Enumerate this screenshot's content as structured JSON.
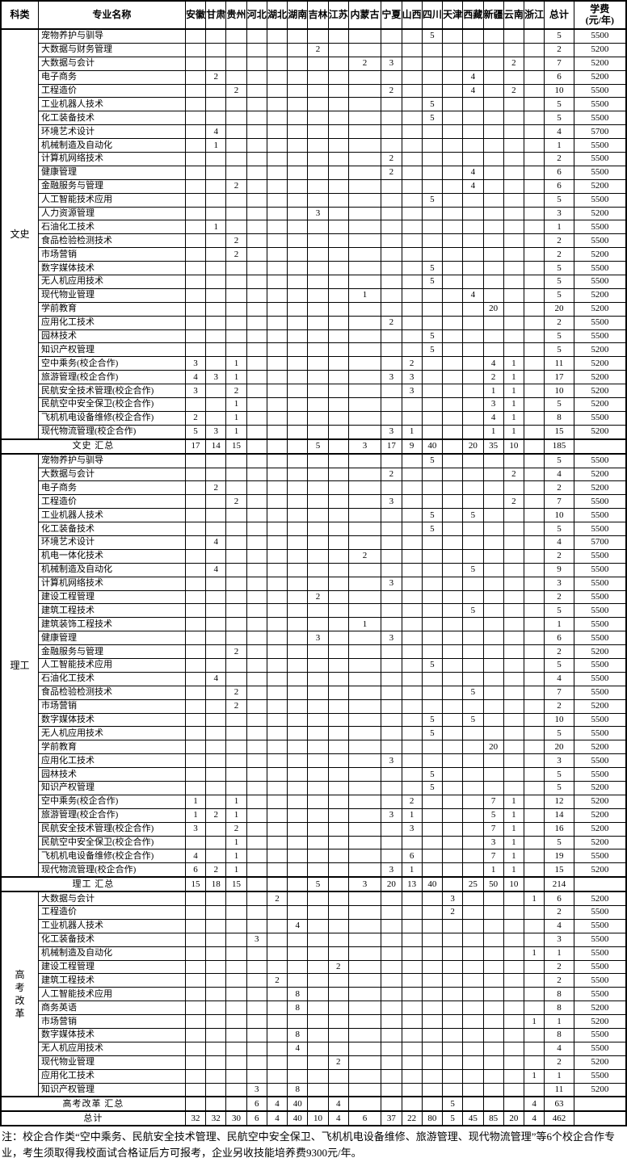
{
  "table": {
    "headers": {
      "category": "科类",
      "major": "专业名称",
      "total": "总计",
      "fee": "学费\n(元/年)"
    },
    "provinces": [
      "安徽",
      "甘肃",
      "贵州",
      "河北",
      "湖北",
      "湖南",
      "吉林",
      "江苏",
      "内蒙古",
      "宁夏",
      "山西",
      "四川",
      "天津",
      "西藏",
      "新疆",
      "云南",
      "浙江"
    ],
    "sections": [
      {
        "label": "文史",
        "rows": [
          {
            "major": "宠物养护与驯导",
            "values": {
              "四川": 5
            },
            "total": 5,
            "fee": "5500"
          },
          {
            "major": "大数据与财务管理",
            "values": {
              "吉林": 2
            },
            "total": 2,
            "fee": "5200"
          },
          {
            "major": "大数据与会计",
            "values": {
              "内蒙古": 2,
              "宁夏": 3,
              "云南": 2
            },
            "total": 7,
            "fee": "5200"
          },
          {
            "major": "电子商务",
            "values": {
              "甘肃": 2,
              "西藏": 4
            },
            "total": 6,
            "fee": "5200"
          },
          {
            "major": "工程造价",
            "values": {
              "贵州": 2,
              "宁夏": 2,
              "西藏": 4,
              "云南": 2
            },
            "total": 10,
            "fee": "5500"
          },
          {
            "major": "工业机器人技术",
            "values": {
              "四川": 5
            },
            "total": 5,
            "fee": "5500"
          },
          {
            "major": "化工装备技术",
            "values": {
              "四川": 5
            },
            "total": 5,
            "fee": "5500"
          },
          {
            "major": "环境艺术设计",
            "values": {
              "甘肃": 4
            },
            "total": 4,
            "fee": "5700"
          },
          {
            "major": "机械制造及自动化",
            "values": {
              "甘肃": 1
            },
            "total": 1,
            "fee": "5500"
          },
          {
            "major": "计算机网络技术",
            "values": {
              "宁夏": 2
            },
            "total": 2,
            "fee": "5500"
          },
          {
            "major": "健康管理",
            "values": {
              "宁夏": 2,
              "西藏": 4
            },
            "total": 6,
            "fee": "5500"
          },
          {
            "major": "金融服务与管理",
            "values": {
              "贵州": 2,
              "西藏": 4
            },
            "total": 6,
            "fee": "5200"
          },
          {
            "major": "人工智能技术应用",
            "values": {
              "四川": 5
            },
            "total": 5,
            "fee": "5500"
          },
          {
            "major": "人力资源管理",
            "values": {
              "吉林": 3
            },
            "total": 3,
            "fee": "5200"
          },
          {
            "major": "石油化工技术",
            "values": {
              "甘肃": 1
            },
            "total": 1,
            "fee": "5500"
          },
          {
            "major": "食品检验检测技术",
            "values": {
              "贵州": 2
            },
            "total": 2,
            "fee": "5500"
          },
          {
            "major": "市场营销",
            "values": {
              "贵州": 2
            },
            "total": 2,
            "fee": "5200"
          },
          {
            "major": "数字媒体技术",
            "values": {
              "四川": 5
            },
            "total": 5,
            "fee": "5500"
          },
          {
            "major": "无人机应用技术",
            "values": {
              "四川": 5
            },
            "total": 5,
            "fee": "5500"
          },
          {
            "major": "现代物业管理",
            "values": {
              "内蒙古": 1,
              "西藏": 4
            },
            "total": 5,
            "fee": "5200"
          },
          {
            "major": "学前教育",
            "values": {
              "新疆": 20
            },
            "total": 20,
            "fee": "5200"
          },
          {
            "major": "应用化工技术",
            "values": {
              "宁夏": 2
            },
            "total": 2,
            "fee": "5500"
          },
          {
            "major": "园林技术",
            "values": {
              "四川": 5
            },
            "total": 5,
            "fee": "5500"
          },
          {
            "major": "知识产权管理",
            "values": {
              "四川": 5
            },
            "total": 5,
            "fee": "5200"
          },
          {
            "major": "空中乘务(校企合作)",
            "values": {
              "安徽": 3,
              "贵州": 1,
              "山西": 2,
              "新疆": 4,
              "云南": 1
            },
            "total": 11,
            "fee": "5200"
          },
          {
            "major": "旅游管理(校企合作)",
            "values": {
              "安徽": 4,
              "甘肃": 3,
              "贵州": 1,
              "宁夏": 3,
              "山西": 3,
              "新疆": 2,
              "云南": 1
            },
            "total": 17,
            "fee": "5200"
          },
          {
            "major": "民航安全技术管理(校企合作)",
            "values": {
              "安徽": 3,
              "贵州": 2,
              "山西": 3,
              "新疆": 1,
              "云南": 1
            },
            "total": 10,
            "fee": "5200"
          },
          {
            "major": "民航空中安全保卫(校企合作)",
            "values": {
              "贵州": 1,
              "新疆": 3,
              "云南": 1
            },
            "total": 5,
            "fee": "5200"
          },
          {
            "major": "飞机机电设备维修(校企合作)",
            "values": {
              "安徽": 2,
              "贵州": 1,
              "新疆": 4,
              "云南": 1
            },
            "total": 8,
            "fee": "5500"
          },
          {
            "major": "现代物流管理(校企合作)",
            "values": {
              "安徽": 5,
              "甘肃": 3,
              "贵州": 1,
              "宁夏": 3,
              "山西": 1,
              "新疆": 1,
              "云南": 1
            },
            "total": 15,
            "fee": "5200"
          }
        ],
        "summary": {
          "label": "文史 汇总",
          "values": {
            "安徽": 17,
            "甘肃": 14,
            "贵州": 15,
            "吉林": 5,
            "内蒙古": 3,
            "宁夏": 17,
            "山西": 9,
            "四川": 40,
            "西藏": 20,
            "新疆": 35,
            "云南": 10
          },
          "total": 185
        }
      },
      {
        "label": "理工",
        "rows": [
          {
            "major": "宠物养护与驯导",
            "values": {
              "四川": 5
            },
            "total": 5,
            "fee": "5500"
          },
          {
            "major": "大数据与会计",
            "values": {
              "宁夏": 2,
              "云南": 2
            },
            "total": 4,
            "fee": "5200"
          },
          {
            "major": "电子商务",
            "values": {
              "甘肃": 2
            },
            "total": 2,
            "fee": "5200"
          },
          {
            "major": "工程造价",
            "values": {
              "贵州": 2,
              "宁夏": 3,
              "云南": 2
            },
            "total": 7,
            "fee": "5500"
          },
          {
            "major": "工业机器人技术",
            "values": {
              "四川": 5,
              "西藏": 5
            },
            "total": 10,
            "fee": "5500"
          },
          {
            "major": "化工装备技术",
            "values": {
              "四川": 5
            },
            "total": 5,
            "fee": "5500"
          },
          {
            "major": "环境艺术设计",
            "values": {
              "甘肃": 4
            },
            "total": 4,
            "fee": "5700"
          },
          {
            "major": "机电一体化技术",
            "values": {
              "内蒙古": 2
            },
            "total": 2,
            "fee": "5500"
          },
          {
            "major": "机械制造及自动化",
            "values": {
              "甘肃": 4,
              "西藏": 5
            },
            "total": 9,
            "fee": "5500"
          },
          {
            "major": "计算机网络技术",
            "values": {
              "宁夏": 3
            },
            "total": 3,
            "fee": "5500"
          },
          {
            "major": "建设工程管理",
            "values": {
              "吉林": 2
            },
            "total": 2,
            "fee": "5500"
          },
          {
            "major": "建筑工程技术",
            "values": {
              "西藏": 5
            },
            "total": 5,
            "fee": "5500"
          },
          {
            "major": "建筑装饰工程技术",
            "values": {
              "内蒙古": 1
            },
            "total": 1,
            "fee": "5500"
          },
          {
            "major": "健康管理",
            "values": {
              "吉林": 3,
              "宁夏": 3
            },
            "total": 6,
            "fee": "5500"
          },
          {
            "major": "金融服务与管理",
            "values": {
              "贵州": 2
            },
            "total": 2,
            "fee": "5200"
          },
          {
            "major": "人工智能技术应用",
            "values": {
              "四川": 5
            },
            "total": 5,
            "fee": "5500"
          },
          {
            "major": "石油化工技术",
            "values": {
              "甘肃": 4
            },
            "total": 4,
            "fee": "5500"
          },
          {
            "major": "食品检验检测技术",
            "values": {
              "贵州": 2,
              "西藏": 5
            },
            "total": 7,
            "fee": "5500"
          },
          {
            "major": "市场营销",
            "values": {
              "贵州": 2
            },
            "total": 2,
            "fee": "5200"
          },
          {
            "major": "数字媒体技术",
            "values": {
              "四川": 5,
              "西藏": 5
            },
            "total": 10,
            "fee": "5500"
          },
          {
            "major": "无人机应用技术",
            "values": {
              "四川": 5
            },
            "total": 5,
            "fee": "5500"
          },
          {
            "major": "学前教育",
            "values": {
              "新疆": 20
            },
            "total": 20,
            "fee": "5200"
          },
          {
            "major": "应用化工技术",
            "values": {
              "宁夏": 3
            },
            "total": 3,
            "fee": "5500"
          },
          {
            "major": "园林技术",
            "values": {
              "四川": 5
            },
            "total": 5,
            "fee": "5500"
          },
          {
            "major": "知识产权管理",
            "values": {
              "四川": 5
            },
            "total": 5,
            "fee": "5200"
          },
          {
            "major": "空中乘务(校企合作)",
            "values": {
              "安徽": 1,
              "贵州": 1,
              "山西": 2,
              "新疆": 7,
              "云南": 1
            },
            "total": 12,
            "fee": "5200"
          },
          {
            "major": "旅游管理(校企合作)",
            "values": {
              "安徽": 1,
              "甘肃": 2,
              "贵州": 1,
              "宁夏": 3,
              "山西": 1,
              "新疆": 5,
              "云南": 1
            },
            "total": 14,
            "fee": "5200"
          },
          {
            "major": "民航安全技术管理(校企合作)",
            "values": {
              "安徽": 3,
              "贵州": 2,
              "山西": 3,
              "新疆": 7,
              "云南": 1
            },
            "total": 16,
            "fee": "5200"
          },
          {
            "major": "民航空中安全保卫(校企合作)",
            "values": {
              "贵州": 1,
              "新疆": 3,
              "云南": 1
            },
            "total": 5,
            "fee": "5200"
          },
          {
            "major": "飞机机电设备维修(校企合作)",
            "values": {
              "安徽": 4,
              "贵州": 1,
              "山西": 6,
              "新疆": 7,
              "云南": 1
            },
            "total": 19,
            "fee": "5500"
          },
          {
            "major": "现代物流管理(校企合作)",
            "values": {
              "安徽": 6,
              "甘肃": 2,
              "贵州": 1,
              "宁夏": 3,
              "山西": 1,
              "新疆": 1,
              "云南": 1
            },
            "total": 15,
            "fee": "5200"
          }
        ],
        "summary": {
          "label": "理工 汇总",
          "values": {
            "安徽": 15,
            "甘肃": 18,
            "贵州": 15,
            "吉林": 5,
            "内蒙古": 3,
            "宁夏": 20,
            "山西": 13,
            "四川": 40,
            "西藏": 25,
            "新疆": 50,
            "云南": 10
          },
          "total": 214
        }
      },
      {
        "label": "高考改革",
        "rows": [
          {
            "major": "大数据与会计",
            "values": {
              "湖北": 2,
              "天津": 3,
              "浙江": 1
            },
            "total": 6,
            "fee": "5200"
          },
          {
            "major": "工程造价",
            "values": {
              "天津": 2
            },
            "total": 2,
            "fee": "5500"
          },
          {
            "major": "工业机器人技术",
            "values": {
              "湖南": 4
            },
            "total": 4,
            "fee": "5500"
          },
          {
            "major": "化工装备技术",
            "values": {
              "河北": 3
            },
            "total": 3,
            "fee": "5500"
          },
          {
            "major": "机械制造及自动化",
            "values": {
              "浙江": 1
            },
            "total": 1,
            "fee": "5500"
          },
          {
            "major": "建设工程管理",
            "values": {
              "江苏": 2
            },
            "total": 2,
            "fee": "5500"
          },
          {
            "major": "建筑工程技术",
            "values": {
              "湖北": 2
            },
            "total": 2,
            "fee": "5500"
          },
          {
            "major": "人工智能技术应用",
            "values": {
              "湖南": 8
            },
            "total": 8,
            "fee": "5500"
          },
          {
            "major": "商务英语",
            "values": {
              "湖南": 8
            },
            "total": 8,
            "fee": "5200"
          },
          {
            "major": "市场营销",
            "values": {
              "浙江": 1
            },
            "total": 1,
            "fee": "5200"
          },
          {
            "major": "数字媒体技术",
            "values": {
              "湖南": 8
            },
            "total": 8,
            "fee": "5500"
          },
          {
            "major": "无人机应用技术",
            "values": {
              "湖南": 4
            },
            "total": 4,
            "fee": "5500"
          },
          {
            "major": "现代物业管理",
            "values": {
              "江苏": 2
            },
            "total": 2,
            "fee": "5200"
          },
          {
            "major": "应用化工技术",
            "values": {
              "浙江": 1
            },
            "total": 1,
            "fee": "5500"
          },
          {
            "major": "知识产权管理",
            "values": {
              "河北": 3,
              "湖南": 8
            },
            "total": 11,
            "fee": "5200"
          }
        ],
        "summary": {
          "label": "高考改革 汇总",
          "values": {
            "河北": 6,
            "湖北": 4,
            "湖南": 40,
            "江苏": 4,
            "天津": 5,
            "浙江": 4
          },
          "total": 63
        }
      }
    ],
    "grand_total": {
      "label": "总计",
      "values": {
        "安徽": 32,
        "甘肃": 32,
        "贵州": 30,
        "河北": 6,
        "湖北": 4,
        "湖南": 40,
        "吉林": 10,
        "江苏": 4,
        "内蒙古": 6,
        "宁夏": 37,
        "山西": 22,
        "四川": 80,
        "天津": 5,
        "西藏": 45,
        "新疆": 85,
        "云南": 20,
        "浙江": 4
      },
      "total": 462
    }
  },
  "note": "注：校企合作类“空中乘务、民航安全技术管理、民航空中安全保卫、飞机机电设备维修、旅游管理、现代物流管理”等6个校企合作专业，考生须取得我校面试合格证后方可报考，企业另收技能培养费9300元/年。"
}
